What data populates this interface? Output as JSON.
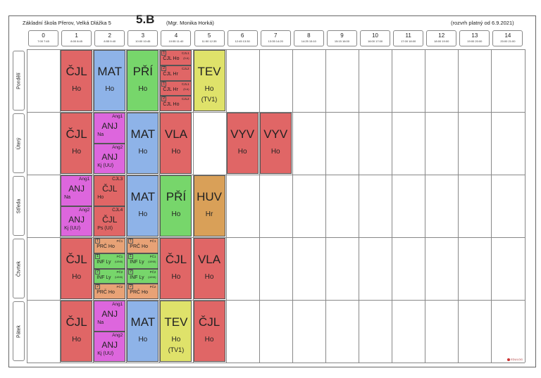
{
  "header": {
    "school": "Základní škola Přerov, Velká Dlážka 5",
    "class": "5.B",
    "teacher": "(Mgr. Monika Horká)",
    "valid_from": "(rozvrh platný od 6.9.2021)"
  },
  "periods": [
    {
      "num": "0",
      "time": "7:00  7:45"
    },
    {
      "num": "1",
      "time": "8:00  8:45"
    },
    {
      "num": "2",
      "time": "8:55  9:40"
    },
    {
      "num": "3",
      "time": "10:00  10:45"
    },
    {
      "num": "4",
      "time": "10:55  11:40"
    },
    {
      "num": "5",
      "time": "11:50  12:35"
    },
    {
      "num": "6",
      "time": "12:45  13:30"
    },
    {
      "num": "7",
      "time": "13:35  14:20"
    },
    {
      "num": "8",
      "time": "14:25  15:10"
    },
    {
      "num": "9",
      "time": "15:15  16:00"
    },
    {
      "num": "10",
      "time": "16:00  17:00"
    },
    {
      "num": "11",
      "time": "17:00  18:00"
    },
    {
      "num": "12",
      "time": "18:00  19:00"
    },
    {
      "num": "13",
      "time": "19:00  20:00"
    },
    {
      "num": "14",
      "time": "20:00  21:00"
    }
  ],
  "days": [
    "Pondělí",
    "Úterý",
    "Středa",
    "Čtvrtek",
    "Pátek"
  ],
  "lessons": {
    "mon": {
      "p1": {
        "subj": "ČJL",
        "tch": "Ho"
      },
      "p2": {
        "subj": "MAT",
        "tch": "Ho"
      },
      "p3": {
        "subj": "PŘÍ",
        "tch": "Ho"
      },
      "p4": [
        {
          "ix": "1",
          "grp": "CJL1",
          "txt": "ČJL Ho",
          "sm": "(5.A)"
        },
        {
          "ix": "2",
          "grp": "CJL2",
          "txt": "ČJL Hr",
          "sm": ""
        },
        {
          "ix": "1",
          "grp": "CJL1",
          "txt": "ČJL Hr",
          "sm": "(5.A)"
        },
        {
          "ix": "2",
          "grp": "CJL2",
          "txt": "ČJL Ho",
          "sm": ""
        }
      ],
      "p5": {
        "subj": "TEV",
        "tch": "Ho",
        "room": "(TV1)"
      }
    },
    "tue": {
      "p1": {
        "subj": "ČJL",
        "tch": "Ho"
      },
      "p2": [
        {
          "grp": "Ang1",
          "subj": "ANJ",
          "tch": "Na"
        },
        {
          "grp": "Ang2",
          "subj": "ANJ",
          "tch": "Kj  (UU)"
        }
      ],
      "p3": {
        "subj": "MAT",
        "tch": "Ho"
      },
      "p4": {
        "subj": "VLA",
        "tch": "Ho"
      },
      "p6": {
        "subj": "VYV",
        "tch": "Ho"
      },
      "p7": {
        "subj": "VYV",
        "tch": "Ho"
      }
    },
    "wed": {
      "p1": [
        {
          "grp": "Ang1",
          "subj": "ANJ",
          "tch": "Na"
        },
        {
          "grp": "Ang2",
          "subj": "ANJ",
          "tch": "Kj  (UU)"
        }
      ],
      "p2": [
        {
          "grp": "CJL3",
          "subj": "ČJL",
          "tch": "Ho"
        },
        {
          "grp": "CJL4",
          "subj": "ČJL",
          "tch": "Ps  (UI)"
        }
      ],
      "p3": {
        "subj": "MAT",
        "tch": "Ho"
      },
      "p4": {
        "subj": "PŘÍ",
        "tch": "Ho"
      },
      "p5": {
        "subj": "HUV",
        "tch": "Hr"
      }
    },
    "thu": {
      "p1": {
        "subj": "ČJL",
        "tch": "Ho"
      },
      "p2": [
        {
          "ix": "1",
          "grp": "PČ1",
          "txt": "PRČ Ho",
          "sm": ""
        },
        {
          "ix": "1",
          "grp": "PČ1",
          "txt": "INF  Ly",
          "sm": "(UIN5)"
        },
        {
          "ix": "2",
          "grp": "PČ2",
          "txt": "INF  Ly",
          "sm": "(UIN5)"
        },
        {
          "ix": "2",
          "grp": "PČ2",
          "txt": "PRČ Ho",
          "sm": ""
        }
      ],
      "p3": [
        {
          "ix": "1",
          "grp": "PČ1",
          "txt": "PRČ Ho",
          "sm": ""
        },
        {
          "ix": "1",
          "grp": "PČ1",
          "txt": "INF  Ly",
          "sm": "(UIN5)"
        },
        {
          "ix": "2",
          "grp": "PČ2",
          "txt": "INF  Ly",
          "sm": "(UIN5)"
        },
        {
          "ix": "2",
          "grp": "PČ2",
          "txt": "PRČ Ho",
          "sm": ""
        }
      ],
      "p4": {
        "subj": "ČJL",
        "tch": "Ho"
      },
      "p5": {
        "subj": "VLA",
        "tch": "Ho"
      }
    },
    "fri": {
      "p1": {
        "subj": "ČJL",
        "tch": "Ho"
      },
      "p2": [
        {
          "grp": "Ang1",
          "subj": "ANJ",
          "tch": "Na"
        },
        {
          "grp": "Ang2",
          "subj": "ANJ",
          "tch": "Kj  (UU)"
        }
      ],
      "p3": {
        "subj": "MAT",
        "tch": "Ho"
      },
      "p4": {
        "subj": "TEV",
        "tch": "Ho",
        "room": "(TV1)"
      },
      "p5": {
        "subj": "ČJL",
        "tch": "Ho"
      }
    }
  },
  "colors": {
    "CJL": "#e06666",
    "MAT": "#8eb3e8",
    "PRI": "#77d66b",
    "TEV": "#dfe26a",
    "ANJ": "#dd66dd",
    "HUV": "#d9a058",
    "PRC": "#e8a276",
    "INF": "#77d66b"
  },
  "footer": {
    "logo": "EDULOG"
  }
}
